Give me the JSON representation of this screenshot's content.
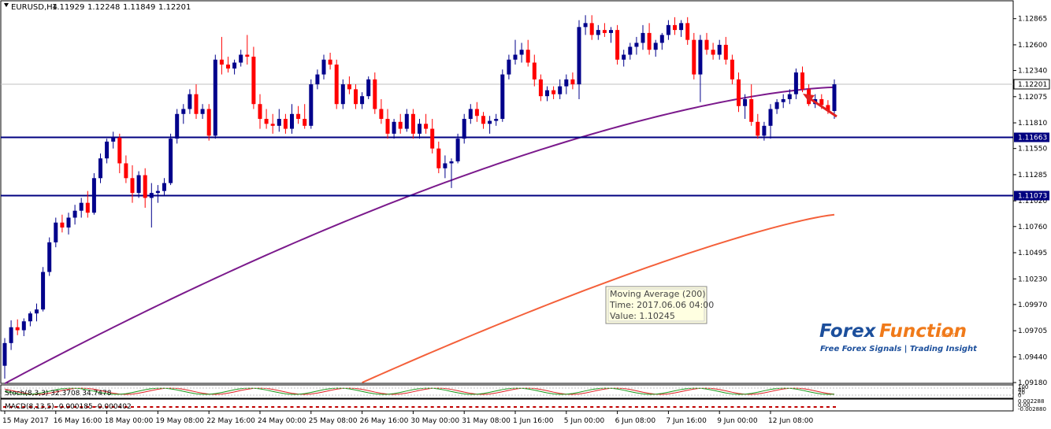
{
  "chart_data": {
    "type": "candlestick",
    "header": {
      "symbol": "EURUSD,H4",
      "open": "1.11929",
      "high": "1.12248",
      "low": "1.11849",
      "close": "1.12201"
    },
    "ylim": [
      1.0918,
      1.1303
    ],
    "price_ticks": [
      "1.12865",
      "1.12600",
      "1.12340",
      "1.12075",
      "1.11810",
      "1.11550",
      "1.11285",
      "1.11020",
      "1.10760",
      "1.10495",
      "1.10230",
      "1.09970",
      "1.09705",
      "1.09440",
      "1.09180"
    ],
    "price_tick_values": [
      1.12865,
      1.126,
      1.1234,
      1.12075,
      1.1181,
      1.1155,
      1.11285,
      1.1102,
      1.1076,
      1.10495,
      1.1023,
      1.0997,
      1.09705,
      1.0944,
      1.0918
    ],
    "x_ticks": [
      "15 May 2017",
      "16 May 16:00",
      "18 May 00:00",
      "19 May 08:00",
      "22 May 16:00",
      "24 May 00:00",
      "25 May 08:00",
      "26 May 16:00",
      "30 May 00:00",
      "31 May 08:00",
      "1 Jun 16:00",
      "5 Jun 00:00",
      "6 Jun 08:00",
      "7 Jun 16:00",
      "9 Jun 00:00",
      "12 Jun 08:00"
    ],
    "x_tick_index": [
      0,
      8,
      16,
      24,
      32,
      40,
      48,
      56,
      64,
      72,
      80,
      88,
      96,
      104,
      112,
      120
    ],
    "current_price": {
      "label": "1.12201",
      "value": 1.12201
    },
    "horizontal_lines": [
      {
        "label": "1.11663",
        "value": 1.11663,
        "color": "#000080"
      },
      {
        "label": "1.11073",
        "value": 1.11073,
        "color": "#000080"
      }
    ],
    "candles": [
      [
        1.0935,
        1.0963,
        1.0922,
        1.0958
      ],
      [
        1.0958,
        1.0981,
        1.0951,
        1.0974
      ],
      [
        1.0974,
        1.0982,
        1.0966,
        1.0971
      ],
      [
        1.0971,
        1.0983,
        1.0965,
        1.098
      ],
      [
        1.098,
        1.099,
        1.0975,
        1.0988
      ],
      [
        1.0988,
        1.0998,
        1.098,
        1.0992
      ],
      [
        1.0992,
        1.1035,
        1.099,
        1.103
      ],
      [
        1.103,
        1.1065,
        1.1026,
        1.106
      ],
      [
        1.106,
        1.1085,
        1.1055,
        1.108
      ],
      [
        1.108,
        1.1088,
        1.107,
        1.1075
      ],
      [
        1.1075,
        1.109,
        1.1068,
        1.1085
      ],
      [
        1.1085,
        1.1098,
        1.1078,
        1.1092
      ],
      [
        1.1092,
        1.1105,
        1.1085,
        1.11
      ],
      [
        1.11,
        1.1112,
        1.1085,
        1.109
      ],
      [
        1.109,
        1.113,
        1.1088,
        1.1125
      ],
      [
        1.1125,
        1.115,
        1.112,
        1.1145
      ],
      [
        1.1145,
        1.1165,
        1.114,
        1.1162
      ],
      [
        1.1162,
        1.1172,
        1.1155,
        1.1166
      ],
      [
        1.1166,
        1.117,
        1.113,
        1.114
      ],
      [
        1.114,
        1.1148,
        1.112,
        1.1125
      ],
      [
        1.1125,
        1.1138,
        1.11,
        1.111
      ],
      [
        1.111,
        1.1132,
        1.1105,
        1.1128
      ],
      [
        1.1128,
        1.1135,
        1.1095,
        1.1105
      ],
      [
        1.1105,
        1.112,
        1.1075,
        1.111
      ],
      [
        1.111,
        1.1118,
        1.11,
        1.1112
      ],
      [
        1.1112,
        1.1125,
        1.1108,
        1.112
      ],
      [
        1.112,
        1.117,
        1.1118,
        1.1165
      ],
      [
        1.1165,
        1.1195,
        1.116,
        1.119
      ],
      [
        1.119,
        1.12,
        1.118,
        1.1195
      ],
      [
        1.1195,
        1.1215,
        1.119,
        1.121
      ],
      [
        1.121,
        1.122,
        1.1185,
        1.119
      ],
      [
        1.119,
        1.12,
        1.1185,
        1.1195
      ],
      [
        1.1195,
        1.12,
        1.1163,
        1.1168
      ],
      [
        1.1168,
        1.125,
        1.1165,
        1.1245
      ],
      [
        1.1245,
        1.1268,
        1.123,
        1.124
      ],
      [
        1.124,
        1.1248,
        1.1232,
        1.1236
      ],
      [
        1.1236,
        1.1245,
        1.123,
        1.1242
      ],
      [
        1.1242,
        1.1255,
        1.1238,
        1.125
      ],
      [
        1.125,
        1.127,
        1.124,
        1.1248
      ],
      [
        1.1248,
        1.1258,
        1.1195,
        1.12
      ],
      [
        1.12,
        1.121,
        1.1175,
        1.1185
      ],
      [
        1.1185,
        1.1195,
        1.1175,
        1.118
      ],
      [
        1.118,
        1.119,
        1.117,
        1.1178
      ],
      [
        1.1178,
        1.1195,
        1.1172,
        1.1185
      ],
      [
        1.1185,
        1.119,
        1.117,
        1.1175
      ],
      [
        1.1175,
        1.12,
        1.117,
        1.119
      ],
      [
        1.119,
        1.1198,
        1.118,
        1.1185
      ],
      [
        1.1185,
        1.12,
        1.1175,
        1.1178
      ],
      [
        1.1178,
        1.1225,
        1.1175,
        1.122
      ],
      [
        1.122,
        1.1235,
        1.1215,
        1.123
      ],
      [
        1.123,
        1.125,
        1.1225,
        1.1245
      ],
      [
        1.1245,
        1.1252,
        1.1235,
        1.124
      ],
      [
        1.124,
        1.1245,
        1.1195,
        1.12
      ],
      [
        1.12,
        1.1225,
        1.1195,
        1.122
      ],
      [
        1.122,
        1.1228,
        1.121,
        1.1215
      ],
      [
        1.1215,
        1.122,
        1.1195,
        1.12
      ],
      [
        1.12,
        1.1212,
        1.1195,
        1.1208
      ],
      [
        1.1208,
        1.1228,
        1.1205,
        1.1225
      ],
      [
        1.1225,
        1.1232,
        1.119,
        1.1195
      ],
      [
        1.1195,
        1.1205,
        1.118,
        1.1185
      ],
      [
        1.1185,
        1.1195,
        1.1165,
        1.117
      ],
      [
        1.117,
        1.1185,
        1.1165,
        1.1182
      ],
      [
        1.1182,
        1.119,
        1.117,
        1.1175
      ],
      [
        1.1175,
        1.1195,
        1.1172,
        1.119
      ],
      [
        1.119,
        1.1195,
        1.1165,
        1.117
      ],
      [
        1.117,
        1.1185,
        1.1165,
        1.118
      ],
      [
        1.118,
        1.119,
        1.117,
        1.1175
      ],
      [
        1.1175,
        1.1185,
        1.115,
        1.1155
      ],
      [
        1.1155,
        1.1162,
        1.113,
        1.1135
      ],
      [
        1.1135,
        1.1148,
        1.1125,
        1.114
      ],
      [
        1.114,
        1.1145,
        1.1115,
        1.1142
      ],
      [
        1.1142,
        1.117,
        1.114,
        1.1165
      ],
      [
        1.1165,
        1.119,
        1.116,
        1.1185
      ],
      [
        1.1185,
        1.12,
        1.118,
        1.1195
      ],
      [
        1.1195,
        1.1202,
        1.1182,
        1.1188
      ],
      [
        1.1188,
        1.1192,
        1.1175,
        1.118
      ],
      [
        1.118,
        1.1188,
        1.117,
        1.1183
      ],
      [
        1.1183,
        1.119,
        1.1178,
        1.1185
      ],
      [
        1.1185,
        1.1235,
        1.1182,
        1.123
      ],
      [
        1.123,
        1.125,
        1.1225,
        1.1245
      ],
      [
        1.1245,
        1.1265,
        1.124,
        1.125
      ],
      [
        1.125,
        1.1262,
        1.1242,
        1.1255
      ],
      [
        1.1255,
        1.1265,
        1.1238,
        1.1242
      ],
      [
        1.1242,
        1.125,
        1.1218,
        1.1225
      ],
      [
        1.1225,
        1.123,
        1.1203,
        1.1208
      ],
      [
        1.1208,
        1.1218,
        1.1203,
        1.1214
      ],
      [
        1.1214,
        1.1218,
        1.1205,
        1.121
      ],
      [
        1.121,
        1.1225,
        1.1205,
        1.1218
      ],
      [
        1.1218,
        1.123,
        1.121,
        1.1225
      ],
      [
        1.1225,
        1.1232,
        1.1215,
        1.122
      ],
      [
        1.122,
        1.1285,
        1.1205,
        1.1278
      ],
      [
        1.1278,
        1.129,
        1.127,
        1.1282
      ],
      [
        1.1282,
        1.129,
        1.1265,
        1.127
      ],
      [
        1.127,
        1.128,
        1.1265,
        1.1275
      ],
      [
        1.1275,
        1.1282,
        1.1268,
        1.1272
      ],
      [
        1.1272,
        1.1278,
        1.1262,
        1.1275
      ],
      [
        1.1275,
        1.128,
        1.124,
        1.1245
      ],
      [
        1.1245,
        1.1255,
        1.1238,
        1.125
      ],
      [
        1.125,
        1.1262,
        1.1245,
        1.1258
      ],
      [
        1.1258,
        1.1268,
        1.125,
        1.1262
      ],
      [
        1.1262,
        1.128,
        1.1255,
        1.1272
      ],
      [
        1.1272,
        1.1282,
        1.125,
        1.1255
      ],
      [
        1.1255,
        1.1265,
        1.1248,
        1.1262
      ],
      [
        1.1262,
        1.1272,
        1.1255,
        1.127
      ],
      [
        1.127,
        1.1285,
        1.1265,
        1.128
      ],
      [
        1.128,
        1.1288,
        1.127,
        1.1275
      ],
      [
        1.1275,
        1.1285,
        1.1268,
        1.1282
      ],
      [
        1.1282,
        1.1288,
        1.126,
        1.1265
      ],
      [
        1.1265,
        1.1272,
        1.1225,
        1.123
      ],
      [
        1.123,
        1.127,
        1.1202,
        1.1265
      ],
      [
        1.1265,
        1.1272,
        1.125,
        1.1255
      ],
      [
        1.1255,
        1.1262,
        1.1245,
        1.125
      ],
      [
        1.125,
        1.1265,
        1.1245,
        1.126
      ],
      [
        1.126,
        1.1268,
        1.124,
        1.1245
      ],
      [
        1.1245,
        1.125,
        1.122,
        1.1225
      ],
      [
        1.1225,
        1.1232,
        1.1192,
        1.1198
      ],
      [
        1.1198,
        1.121,
        1.1185,
        1.1205
      ],
      [
        1.1205,
        1.122,
        1.1178,
        1.1182
      ],
      [
        1.1182,
        1.119,
        1.1165,
        1.1168
      ],
      [
        1.1168,
        1.1182,
        1.1163,
        1.1178
      ],
      [
        1.1178,
        1.12,
        1.1165,
        1.1195
      ],
      [
        1.1195,
        1.1205,
        1.119,
        1.1202
      ],
      [
        1.1202,
        1.121,
        1.1196,
        1.1205
      ],
      [
        1.1205,
        1.1215,
        1.12,
        1.121
      ],
      [
        1.121,
        1.1236,
        1.1205,
        1.1232
      ],
      [
        1.1232,
        1.1238,
        1.1212,
        1.1215
      ],
      [
        1.1215,
        1.122,
        1.1198,
        1.12
      ],
      [
        1.12,
        1.121,
        1.1196,
        1.1205
      ],
      [
        1.1205,
        1.121,
        1.1195,
        1.1199
      ],
      [
        1.1199,
        1.1204,
        1.119,
        1.1193
      ],
      [
        1.1193,
        1.1225,
        1.1185,
        1.122
      ]
    ],
    "ma_purple": {
      "start": 1.0917,
      "end": 1.1217,
      "color": "#7b1a8c"
    },
    "ma_orange": {
      "start": 1.0918,
      "end": 1.1088,
      "start_index": 56,
      "color": "#f4603a"
    },
    "bull_color": "#00008b",
    "bear_color": "#ff0000",
    "tooltip": {
      "line1": "Moving Average (200)",
      "line2": "Time: 2017.06.06 04:00",
      "line3": "Value: 1.10245"
    },
    "stoch_label": "Stoch(8,3,3) 32.3708 34.7478",
    "stoch_axis": [
      "100",
      "80",
      "20",
      "0"
    ],
    "macd_label": "MACD(8,13,5) -0.000185 -0.000402",
    "macd_axis": [
      "0.002288",
      "0.00",
      "-0.002880"
    ],
    "logo": {
      "forex": "Forex",
      "function": "Function",
      "com": ".com",
      "tagline": "Free Forex Signals | Trading Insight"
    }
  }
}
